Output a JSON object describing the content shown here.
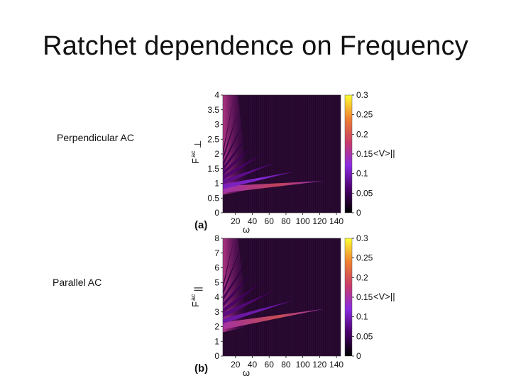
{
  "slide": {
    "title": "Ratchet dependence on Frequency",
    "labels": [
      "Perpendicular AC",
      "Parallel AC"
    ]
  },
  "colors": {
    "background": "#2b0a33",
    "colormap": [
      "#000000",
      "#4a0068",
      "#8a2be2",
      "#c83c6a",
      "#f08030",
      "#ffff33"
    ]
  },
  "chart_data": [
    {
      "type": "heatmap",
      "panel_label": "(a)",
      "xlabel": "ω",
      "ylabel_main": "F",
      "ylabel_sup": "ac",
      "ylabel_sub": "⊥",
      "xlim": [
        5,
        145
      ],
      "ylim": [
        0,
        4
      ],
      "xticks": [
        20,
        40,
        60,
        80,
        100,
        120,
        140
      ],
      "yticks": [
        0,
        0.5,
        1,
        1.5,
        2,
        2.5,
        3,
        3.5,
        4
      ],
      "colorbar": {
        "label": "<V>||",
        "range": [
          0,
          0.3
        ],
        "ticks": [
          0,
          0.05,
          0.1,
          0.15,
          0.2,
          0.25,
          0.3
        ]
      },
      "tongues": [
        {
          "base_x": 5,
          "base_y": 0.72,
          "tip_x": 125,
          "tip_y": 1.08,
          "peak": 0.19
        },
        {
          "base_x": 5,
          "base_y": 0.85,
          "tip_x": 90,
          "tip_y": 1.4,
          "peak": 0.12
        },
        {
          "base_x": 5,
          "base_y": 1.0,
          "tip_x": 68,
          "tip_y": 1.72,
          "peak": 0.08
        },
        {
          "base_x": 5,
          "base_y": 1.15,
          "tip_x": 55,
          "tip_y": 2.05,
          "peak": 0.06
        },
        {
          "base_x": 5,
          "base_y": 1.3,
          "tip_x": 45,
          "tip_y": 2.4,
          "peak": 0.05
        },
        {
          "base_x": 5,
          "base_y": 1.45,
          "tip_x": 38,
          "tip_y": 2.75,
          "peak": 0.04
        },
        {
          "base_x": 5,
          "base_y": 1.6,
          "tip_x": 30,
          "tip_y": 3.1,
          "peak": 0.035
        },
        {
          "base_x": 5,
          "base_y": 1.8,
          "tip_x": 24,
          "tip_y": 3.5,
          "peak": 0.03
        },
        {
          "base_x": 5,
          "base_y": 2.0,
          "tip_x": 18,
          "tip_y": 3.9,
          "peak": 0.025
        }
      ]
    },
    {
      "type": "heatmap",
      "panel_label": "(b)",
      "xlabel": "ω",
      "ylabel_main": "F",
      "ylabel_sup": "ac",
      "ylabel_sub": "||",
      "xlim": [
        5,
        145
      ],
      "ylim": [
        0,
        8
      ],
      "xticks": [
        20,
        40,
        60,
        80,
        100,
        120,
        140
      ],
      "yticks": [
        0,
        1,
        2,
        3,
        4,
        5,
        6,
        7,
        8
      ],
      "colorbar": {
        "label": "<V>||",
        "range": [
          0,
          0.3
        ],
        "ticks": [
          0,
          0.05,
          0.1,
          0.15,
          0.2,
          0.25,
          0.3
        ]
      },
      "tongues": [
        {
          "base_x": 5,
          "base_y": 1.9,
          "tip_x": 125,
          "tip_y": 3.2,
          "peak": 0.2
        },
        {
          "base_x": 5,
          "base_y": 2.3,
          "tip_x": 90,
          "tip_y": 3.8,
          "peak": 0.1
        },
        {
          "base_x": 5,
          "base_y": 2.7,
          "tip_x": 68,
          "tip_y": 4.5,
          "peak": 0.07
        },
        {
          "base_x": 5,
          "base_y": 3.0,
          "tip_x": 55,
          "tip_y": 5.2,
          "peak": 0.055
        },
        {
          "base_x": 5,
          "base_y": 3.4,
          "tip_x": 45,
          "tip_y": 5.9,
          "peak": 0.045
        },
        {
          "base_x": 5,
          "base_y": 3.8,
          "tip_x": 36,
          "tip_y": 6.6,
          "peak": 0.035
        },
        {
          "base_x": 5,
          "base_y": 4.2,
          "tip_x": 26,
          "tip_y": 7.3,
          "peak": 0.03
        },
        {
          "base_x": 5,
          "base_y": 4.6,
          "tip_x": 18,
          "tip_y": 7.9,
          "peak": 0.025
        }
      ]
    }
  ]
}
